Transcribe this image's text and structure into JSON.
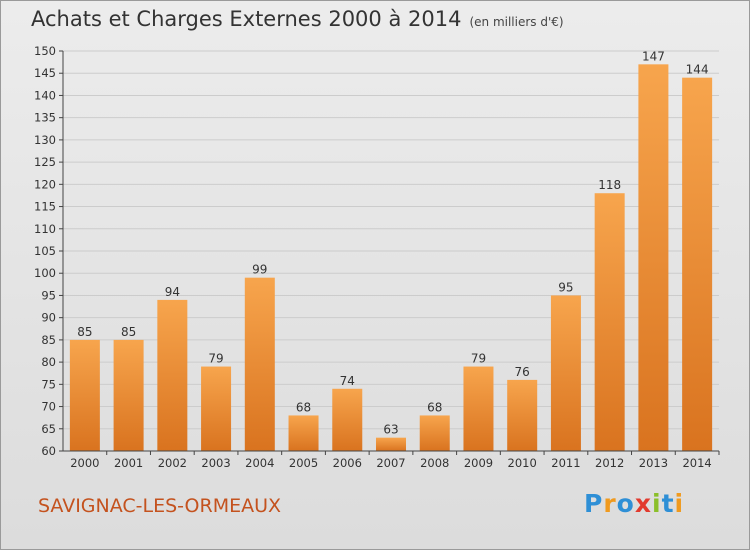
{
  "title": "Achats et Charges Externes 2000 à 2014",
  "unit": "(en milliers d'€)",
  "commune": "SAVIGNAC-LES-ORMEAUX",
  "logo": {
    "letters": [
      "P",
      "r",
      "o",
      "x",
      "i",
      "t",
      "i"
    ],
    "colors": [
      "#2e8fd6",
      "#f09a1e",
      "#2e8fd6",
      "#e23a2e",
      "#8bbf2a",
      "#2e8fd6",
      "#f09a1e"
    ]
  },
  "colors": {
    "bar_top": "#f7a54d",
    "bar_bottom": "#d9731f",
    "axis": "#444444",
    "grid": "#cccccc"
  },
  "chart_data": {
    "type": "bar",
    "title": "Achats et Charges Externes 2000 à 2014",
    "categories": [
      "2000",
      "2001",
      "2002",
      "2003",
      "2004",
      "2005",
      "2006",
      "2007",
      "2008",
      "2009",
      "2010",
      "2011",
      "2012",
      "2013",
      "2014"
    ],
    "values": [
      85,
      85,
      94,
      79,
      99,
      68,
      74,
      63,
      68,
      79,
      76,
      95,
      118,
      147,
      144
    ],
    "data_labels": [
      "85",
      "85",
      "94",
      "79",
      "99",
      "68",
      "74",
      "63",
      "68",
      "79",
      "76",
      "95",
      "118",
      "147",
      "144"
    ],
    "ylim": [
      60,
      150
    ],
    "yticks": [
      60,
      65,
      70,
      75,
      80,
      85,
      90,
      95,
      100,
      105,
      110,
      115,
      120,
      125,
      130,
      135,
      140,
      145,
      150
    ],
    "grid": true,
    "xlabel": "",
    "ylabel": ""
  }
}
